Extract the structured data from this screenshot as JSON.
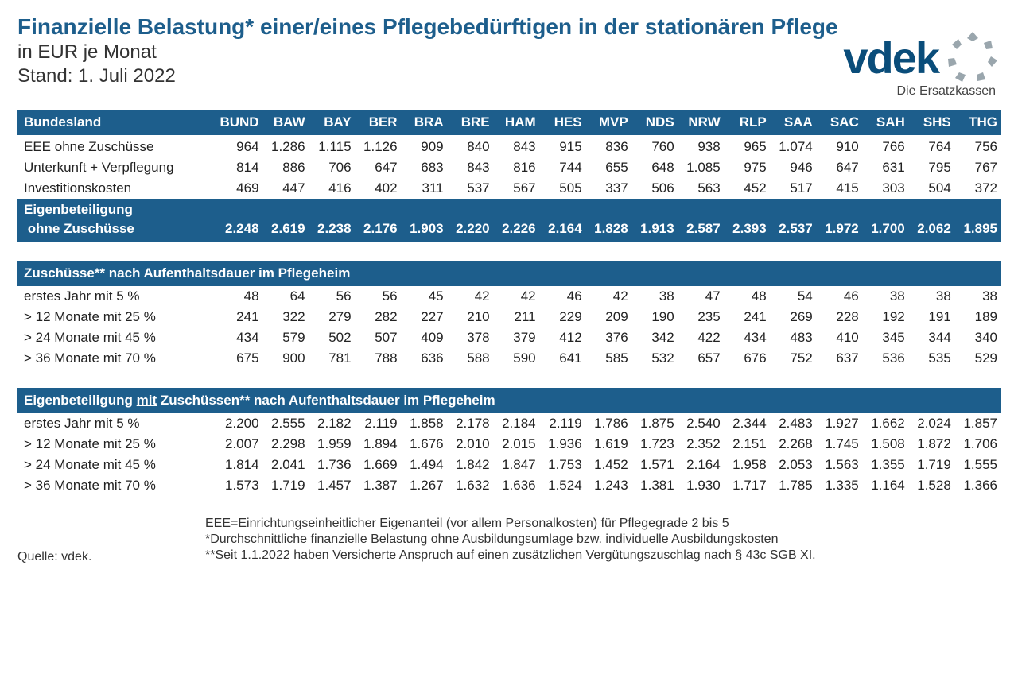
{
  "header": {
    "title": "Finanzielle Belastung* einer/eines Pflegebedürftigen in der stationären Pflege",
    "subtitle": "in EUR je Monat",
    "date": "Stand: 1. Juli 2022"
  },
  "logo": {
    "main": "vdek",
    "sub": "Die Ersatzkassen",
    "color": "#0a4d7a",
    "arc_color": "#9aa6ad"
  },
  "colors": {
    "header_bg": "#1d5e8c",
    "header_fg": "#ffffff",
    "title_color": "#1d5e8c"
  },
  "columns": [
    "BUND",
    "BAW",
    "BAY",
    "BER",
    "BRA",
    "BRE",
    "HAM",
    "HES",
    "MVP",
    "NDS",
    "NRW",
    "RLP",
    "SAA",
    "SAC",
    "SAH",
    "SHS",
    "THG"
  ],
  "column_header_label": "Bundesland",
  "sections": {
    "base": {
      "rows": [
        {
          "label": "EEE ohne Zuschüsse",
          "v": [
            "964",
            "1.286",
            "1.115",
            "1.126",
            "909",
            "840",
            "843",
            "915",
            "836",
            "760",
            "938",
            "965",
            "1.074",
            "910",
            "766",
            "764",
            "756"
          ]
        },
        {
          "label": "Unterkunft + Verpflegung",
          "v": [
            "814",
            "886",
            "706",
            "647",
            "683",
            "843",
            "816",
            "744",
            "655",
            "648",
            "1.085",
            "975",
            "946",
            "647",
            "631",
            "795",
            "767"
          ]
        },
        {
          "label": "Investitionskosten",
          "v": [
            "469",
            "447",
            "416",
            "402",
            "311",
            "537",
            "567",
            "505",
            "337",
            "506",
            "563",
            "452",
            "517",
            "415",
            "303",
            "504",
            "372"
          ]
        }
      ],
      "total": {
        "label_line1": "Eigenbeteiligung",
        "label_line2_pre": "ohne",
        "label_line2_post": " Zuschüsse",
        "v": [
          "2.248",
          "2.619",
          "2.238",
          "2.176",
          "1.903",
          "2.220",
          "2.226",
          "2.164",
          "1.828",
          "1.913",
          "2.587",
          "2.393",
          "2.537",
          "1.972",
          "1.700",
          "2.062",
          "1.895"
        ]
      }
    },
    "zuschuesse": {
      "header": "Zuschüsse** nach Aufenthaltsdauer im Pflegeheim",
      "rows": [
        {
          "label": "erstes Jahr mit 5 %",
          "v": [
            "48",
            "64",
            "56",
            "56",
            "45",
            "42",
            "42",
            "46",
            "42",
            "38",
            "47",
            "48",
            "54",
            "46",
            "38",
            "38",
            "38"
          ]
        },
        {
          "label": "> 12 Monate mit 25 %",
          "v": [
            "241",
            "322",
            "279",
            "282",
            "227",
            "210",
            "211",
            "229",
            "209",
            "190",
            "235",
            "241",
            "269",
            "228",
            "192",
            "191",
            "189"
          ]
        },
        {
          "label": "> 24 Monate mit 45 %",
          "v": [
            "434",
            "579",
            "502",
            "507",
            "409",
            "378",
            "379",
            "412",
            "376",
            "342",
            "422",
            "434",
            "483",
            "410",
            "345",
            "344",
            "340"
          ]
        },
        {
          "label": "> 36 Monate mit 70 %",
          "v": [
            "675",
            "900",
            "781",
            "788",
            "636",
            "588",
            "590",
            "641",
            "585",
            "532",
            "657",
            "676",
            "752",
            "637",
            "536",
            "535",
            "529"
          ]
        }
      ]
    },
    "mit": {
      "header_pre": "Eigenbeteiligung ",
      "header_u": "mit",
      "header_post": " Zuschüssen** nach Aufenthaltsdauer im Pflegeheim",
      "rows": [
        {
          "label": "erstes Jahr mit 5 %",
          "v": [
            "2.200",
            "2.555",
            "2.182",
            "2.119",
            "1.858",
            "2.178",
            "2.184",
            "2.119",
            "1.786",
            "1.875",
            "2.540",
            "2.344",
            "2.483",
            "1.927",
            "1.662",
            "2.024",
            "1.857"
          ]
        },
        {
          "label": "> 12 Monate mit 25 %",
          "v": [
            "2.007",
            "2.298",
            "1.959",
            "1.894",
            "1.676",
            "2.010",
            "2.015",
            "1.936",
            "1.619",
            "1.723",
            "2.352",
            "2.151",
            "2.268",
            "1.745",
            "1.508",
            "1.872",
            "1.706"
          ]
        },
        {
          "label": "> 24 Monate mit 45 %",
          "v": [
            "1.814",
            "2.041",
            "1.736",
            "1.669",
            "1.494",
            "1.842",
            "1.847",
            "1.753",
            "1.452",
            "1.571",
            "2.164",
            "1.958",
            "2.053",
            "1.563",
            "1.355",
            "1.719",
            "1.555"
          ]
        },
        {
          "label": "> 36 Monate mit 70 %",
          "v": [
            "1.573",
            "1.719",
            "1.457",
            "1.387",
            "1.267",
            "1.632",
            "1.636",
            "1.524",
            "1.243",
            "1.381",
            "1.930",
            "1.717",
            "1.785",
            "1.335",
            "1.164",
            "1.528",
            "1.366"
          ]
        }
      ]
    }
  },
  "footnotes": {
    "source": "Quelle: vdek.",
    "lines": [
      "EEE=Einrichtungseinheitlicher Eigenanteil (vor allem Personalkosten) für Pflegegrade 2 bis 5",
      "*Durchschnittliche finanzielle Belastung ohne Ausbildungsumlage bzw. individuelle Ausbildungskosten",
      "**Seit 1.1.2022 haben Versicherte Anspruch auf einen zusätzlichen Vergütungszuschlag nach § 43c SGB XI."
    ]
  }
}
